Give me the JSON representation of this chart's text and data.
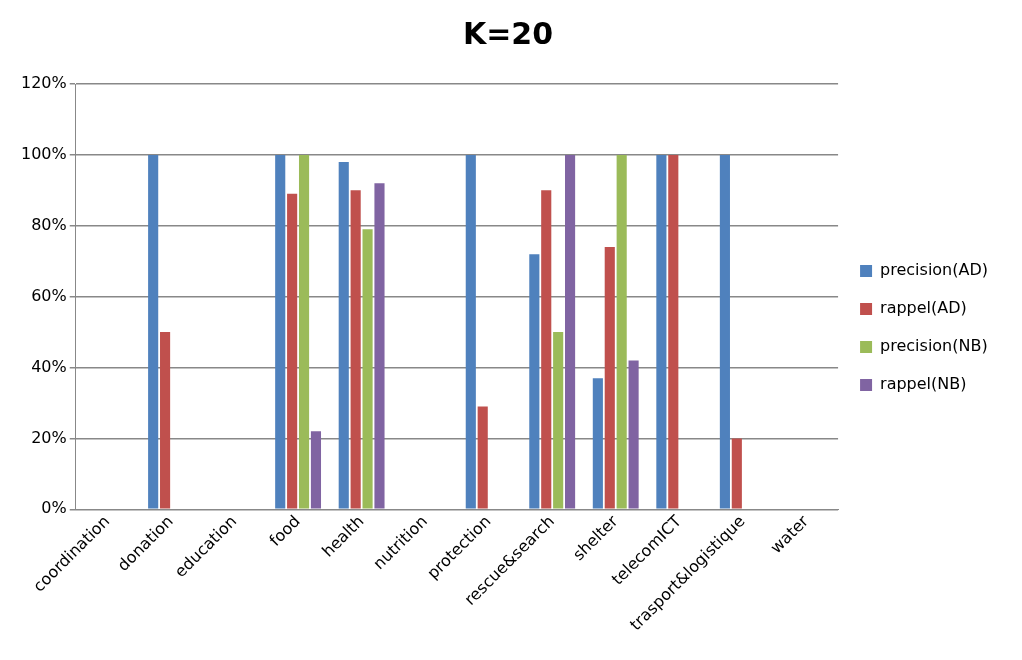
{
  "chart_data": {
    "type": "bar",
    "title": "K=20",
    "categories": [
      "coordination",
      "donation",
      "education",
      "food",
      "health",
      "nutrition",
      "protection",
      "rescue&search",
      "shelter",
      "telecomICT",
      "trasport&logistique",
      "water"
    ],
    "series": [
      {
        "name": "precision(AD)",
        "color": "#4f81bd",
        "values": [
          0,
          100,
          0,
          100,
          98,
          0,
          100,
          72,
          37,
          100,
          100,
          0
        ]
      },
      {
        "name": "rappel(AD)",
        "color": "#c0504d",
        "values": [
          0,
          50,
          0,
          89,
          90,
          0,
          29,
          90,
          74,
          100,
          20,
          0
        ]
      },
      {
        "name": "precision(NB)",
        "color": "#9bbb59",
        "values": [
          0,
          0,
          0,
          100,
          79,
          0,
          0,
          50,
          100,
          0,
          0,
          0
        ]
      },
      {
        "name": "rappel(NB)",
        "color": "#8064a2",
        "values": [
          0,
          0,
          0,
          22,
          92,
          0,
          0,
          100,
          42,
          0,
          0,
          0
        ]
      }
    ],
    "ylim": [
      0,
      120
    ],
    "yticks": [
      {
        "value": 0,
        "label": "0%"
      },
      {
        "value": 20,
        "label": "20%"
      },
      {
        "value": 40,
        "label": "40%"
      },
      {
        "value": 60,
        "label": "60%"
      },
      {
        "value": 80,
        "label": "80%"
      },
      {
        "value": 100,
        "label": "100%"
      },
      {
        "value": 120,
        "label": "120%"
      }
    ],
    "grid": "y",
    "legend": "right"
  }
}
